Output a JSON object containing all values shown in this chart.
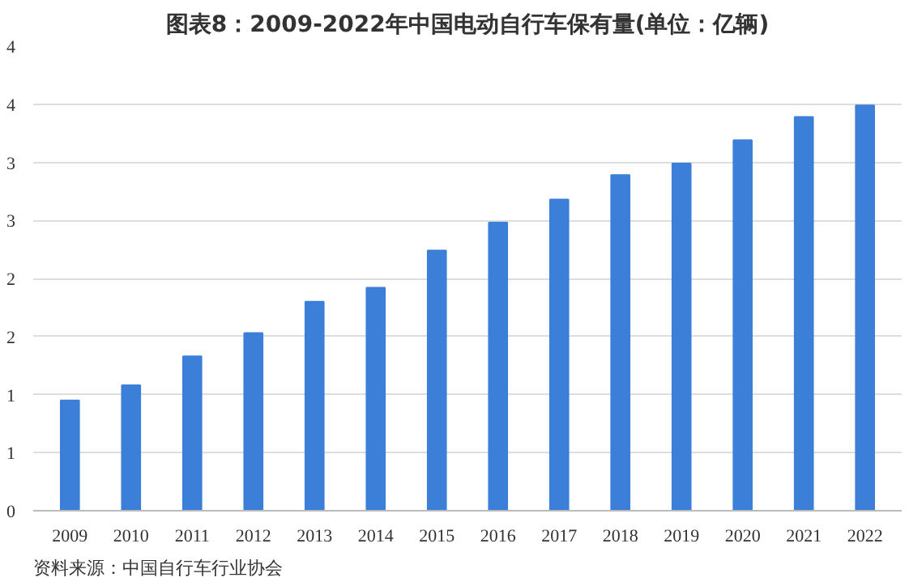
{
  "chart_data": {
    "type": "bar",
    "title": "图表8：2009-2022年中国电动自行车保有量(单位：亿辆)",
    "categories": [
      "2009",
      "2010",
      "2011",
      "2012",
      "2013",
      "2014",
      "2015",
      "2016",
      "2017",
      "2018",
      "2019",
      "2020",
      "2021",
      "2022"
    ],
    "values": [
      0.95,
      1.08,
      1.33,
      1.53,
      1.8,
      1.92,
      2.24,
      2.48,
      2.68,
      2.89,
      2.99,
      3.19,
      3.39,
      3.49
    ],
    "color": "#3b7fd9",
    "ylim": [
      0,
      4
    ],
    "yticks": [
      0,
      {
        "value": 0.5,
        "label": "1"
      },
      1,
      {
        "value": 1.5,
        "label": "2"
      },
      2,
      {
        "value": 2.5,
        "label": "3"
      },
      3,
      {
        "value": 3.5,
        "label": "4"
      },
      4
    ],
    "grid": "y",
    "annotations": [
      "资料来源：中国自行车行业协会"
    ]
  }
}
